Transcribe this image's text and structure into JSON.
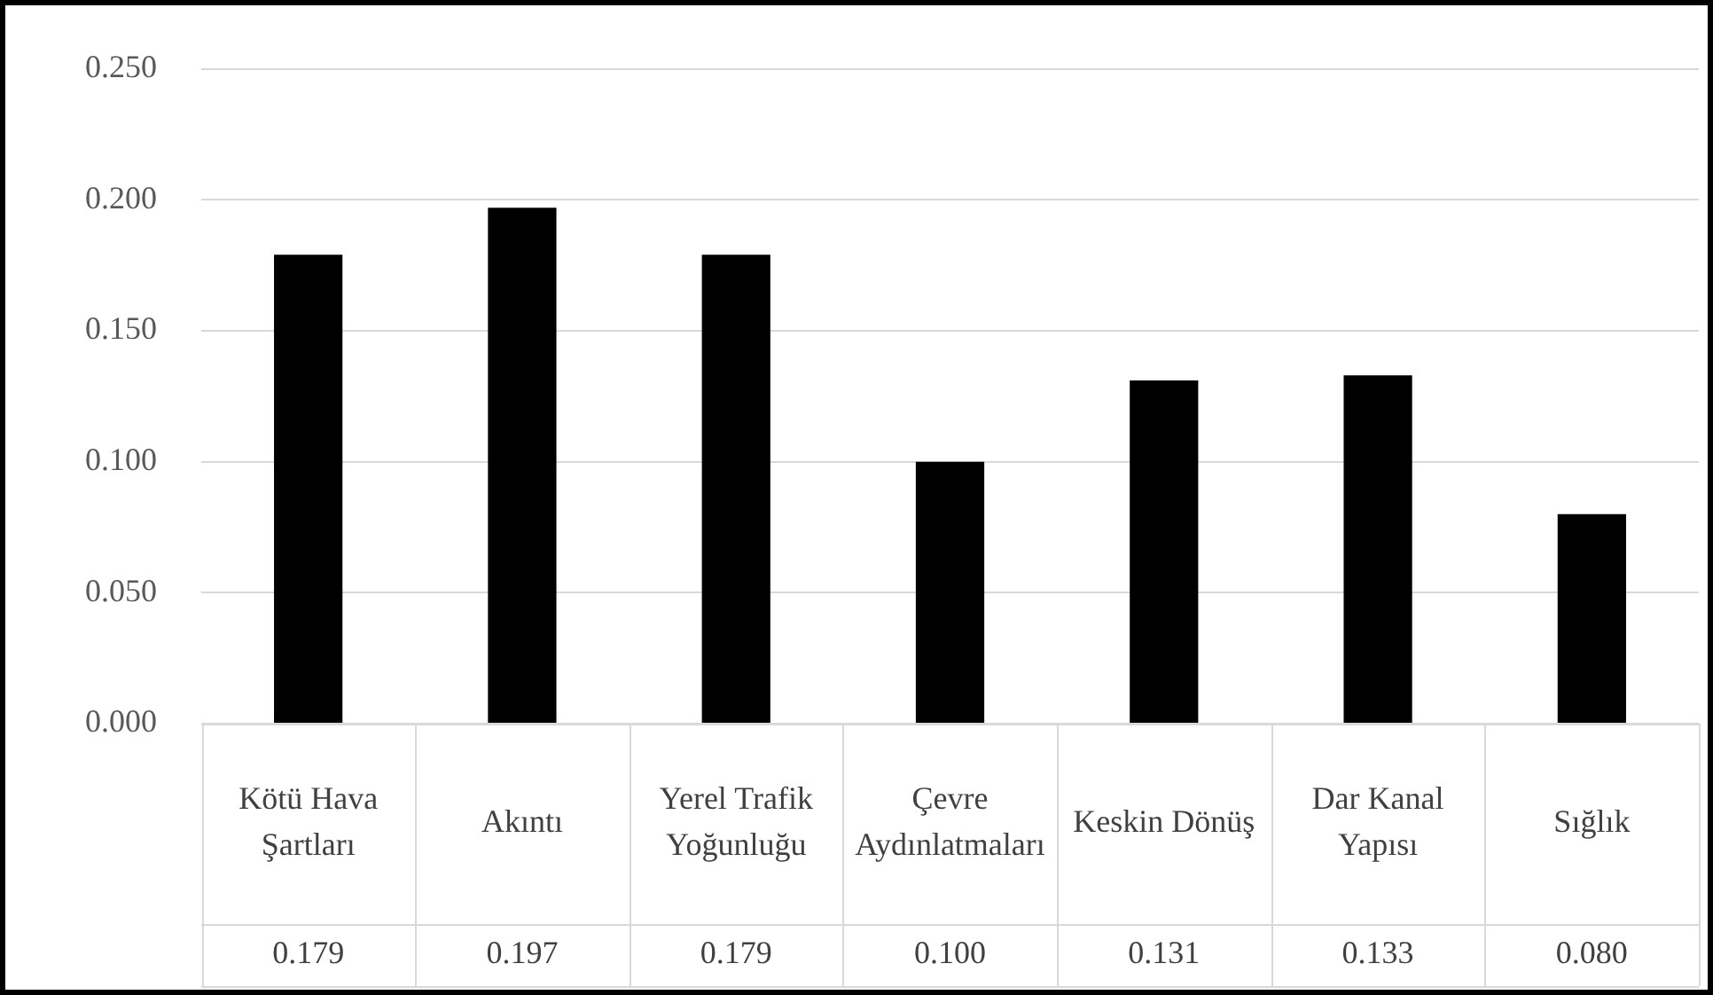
{
  "chart_data": {
    "type": "bar",
    "categories": [
      "Kötü Hava Şartları",
      "Akıntı",
      "Yerel Trafik Yoğunluğu",
      "Çevre Aydınlatmaları",
      "Keskin Dönüş",
      "Dar Kanal Yapısı",
      "Sığlık"
    ],
    "values": [
      0.179,
      0.197,
      0.179,
      0.1,
      0.131,
      0.133,
      0.08
    ],
    "value_labels": [
      "0.179",
      "0.197",
      "0.179",
      "0.100",
      "0.131",
      "0.133",
      "0.080"
    ],
    "color": "#000000",
    "ylim": [
      0,
      0.25
    ],
    "yticks": [
      {
        "value": 0,
        "label": "0.000"
      },
      {
        "value": 0.05,
        "label": "0.050"
      },
      {
        "value": 0.1,
        "label": "0.100"
      },
      {
        "value": 0.15,
        "label": "0.150"
      },
      {
        "value": 0.2,
        "label": "0.200"
      },
      {
        "value": 0.25,
        "label": "0.250"
      }
    ],
    "grid": "y",
    "legend": false
  }
}
